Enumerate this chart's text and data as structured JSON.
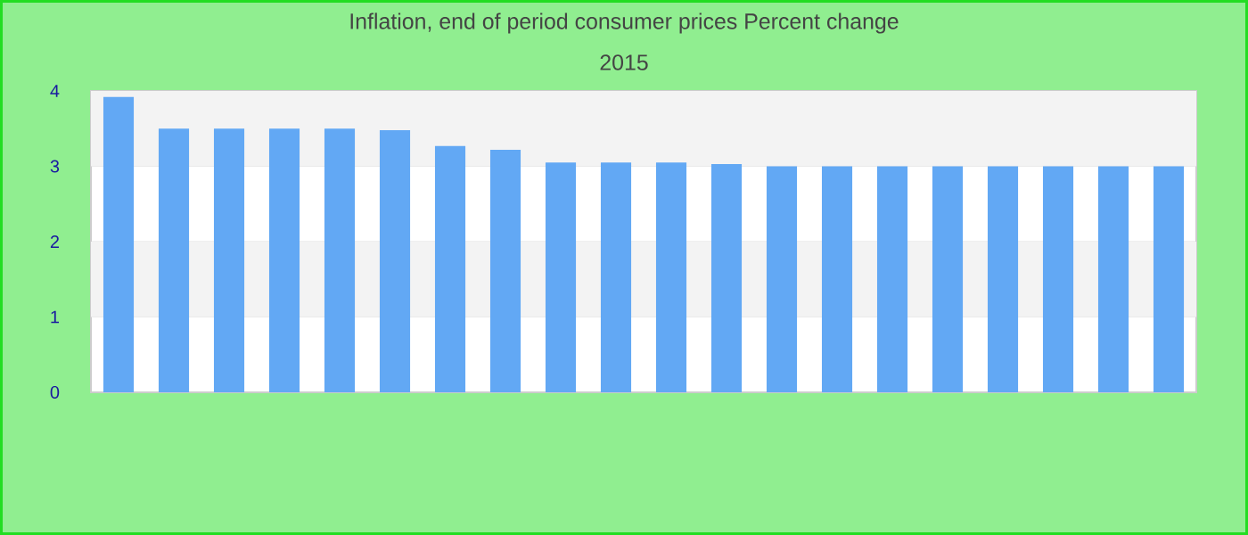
{
  "chart_data": {
    "type": "bar",
    "title": "Inflation, end of period consumer prices  Percent change",
    "subtitle": "2015",
    "categories": [
      null,
      null,
      null,
      null,
      null,
      null,
      null,
      null,
      null,
      null,
      null,
      null,
      null,
      null,
      null,
      null,
      null,
      null,
      null,
      null
    ],
    "values": [
      3.92,
      3.5,
      3.5,
      3.5,
      3.5,
      3.48,
      3.27,
      3.22,
      3.05,
      3.05,
      3.05,
      3.03,
      3.0,
      3.0,
      3.0,
      3.0,
      3.0,
      3.0,
      3.0,
      3.0
    ],
    "color": "#62a8f4",
    "ylim": [
      0,
      4
    ],
    "yticks": [
      0,
      1,
      2,
      3,
      4
    ],
    "grid": "y"
  }
}
